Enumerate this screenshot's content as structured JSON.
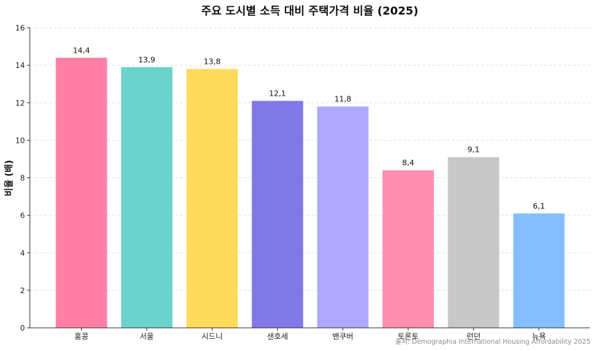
{
  "chart_data": {
    "type": "bar",
    "title": "주요 도시별 소득 대비 주택가격 비율 (2025)",
    "xlabel": "",
    "ylabel": "비율 (배)",
    "ylim": [
      0,
      16
    ],
    "yticks": [
      0,
      2,
      4,
      6,
      8,
      10,
      12,
      14,
      16
    ],
    "grid": true,
    "categories": [
      "홍콩",
      "서울",
      "시드니",
      "샌호세",
      "밴쿠버",
      "토론토",
      "런던",
      "뉴욕"
    ],
    "values": [
      14.4,
      13.9,
      13.8,
      12.1,
      11.8,
      8.4,
      9.1,
      6.1
    ],
    "value_labels": [
      "14,4",
      "13,9",
      "13,8",
      "12,1",
      "11,8",
      "8,4",
      "9,1",
      "6,1"
    ],
    "colors": [
      "#ff7fa6",
      "#6ad3cb",
      "#ffdb5c",
      "#8178e8",
      "#aea8ff",
      "#ff8db0",
      "#c8c8c8",
      "#85bfff"
    ],
    "source": "출처: Demographia International Housing Affordability 2025"
  }
}
